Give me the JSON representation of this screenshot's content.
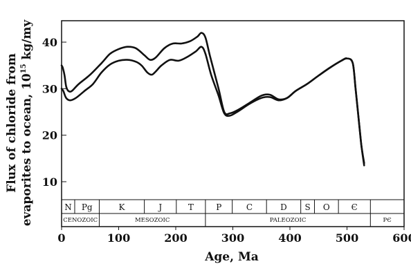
{
  "chart_data": {
    "type": "line",
    "title": "",
    "xlabel": "Age, Ma",
    "ylabel_line1": "Flux of chloride from",
    "ylabel_line2": "evaporites to ocean, 10",
    "ylabel_exponent": "15",
    "ylabel_unit": " kg/my",
    "xlim": [
      0,
      600
    ],
    "ylim": [
      5,
      45
    ],
    "xticks": [
      0,
      100,
      200,
      300,
      400,
      500,
      600
    ],
    "yticks": [
      10,
      20,
      30,
      40
    ],
    "grid": false,
    "series": [
      {
        "x": [
          0,
          2,
          5,
          8,
          12,
          18,
          30,
          50,
          70,
          85,
          100,
          115,
          130,
          145,
          155,
          165,
          180,
          195,
          210,
          225,
          238,
          245,
          252,
          260,
          275,
          285,
          295,
          310,
          330,
          350,
          365,
          380,
          395,
          410,
          430,
          450,
          470,
          490,
          500,
          510,
          515,
          520,
          525,
          530
        ],
        "values": [
          35,
          34.5,
          33,
          30.5,
          29.5,
          29.5,
          31,
          33,
          35.5,
          37.5,
          38.5,
          39,
          38.7,
          37.2,
          36.2,
          36.7,
          38.7,
          39.7,
          39.7,
          40.2,
          41.2,
          42,
          41,
          37,
          30,
          25,
          24.7,
          25.5,
          27,
          28.5,
          28.7,
          27.7,
          28,
          29.5,
          31,
          32.8,
          34.5,
          36,
          36.5,
          35.5,
          30,
          24,
          18,
          14
        ]
      },
      {
        "x": [
          0,
          3,
          8,
          15,
          25,
          40,
          55,
          70,
          85,
          100,
          115,
          130,
          140,
          150,
          158,
          165,
          175,
          190,
          205,
          220,
          235,
          245,
          252,
          262,
          275,
          285,
          295,
          310,
          330,
          350,
          365,
          380,
          395,
          410,
          430,
          450,
          470,
          490,
          500,
          510,
          515,
          520,
          525,
          530
        ],
        "values": [
          30,
          29.5,
          28,
          27.5,
          28,
          29.5,
          31,
          33.5,
          35.2,
          36,
          36.2,
          35.8,
          35,
          33.5,
          33,
          33.7,
          35,
          36.2,
          36,
          36.8,
          38,
          39,
          37.5,
          33,
          28.5,
          24.7,
          24.2,
          25.2,
          26.8,
          28,
          28.2,
          27.5,
          28,
          29.5,
          31,
          32.8,
          34.5,
          36,
          36.5,
          35.5,
          30,
          24,
          18,
          13.5
        ]
      }
    ],
    "periods": [
      {
        "label": "N",
        "from": 0,
        "to": 23
      },
      {
        "label": "Pg",
        "from": 23,
        "to": 66
      },
      {
        "label": "K",
        "from": 66,
        "to": 145
      },
      {
        "label": "J",
        "from": 145,
        "to": 201
      },
      {
        "label": "T",
        "from": 201,
        "to": 252
      },
      {
        "label": "P",
        "from": 252,
        "to": 299
      },
      {
        "label": "C",
        "from": 299,
        "to": 359
      },
      {
        "label": "D",
        "from": 359,
        "to": 419
      },
      {
        "label": "S",
        "from": 419,
        "to": 443
      },
      {
        "label": "O",
        "from": 443,
        "to": 485
      },
      {
        "label": "Є",
        "from": 485,
        "to": 541
      },
      {
        "label": "",
        "from": 541,
        "to": 600
      }
    ],
    "eras": [
      {
        "label": "CENOZOIC",
        "from": 0,
        "to": 66
      },
      {
        "label": "MESOZOIC",
        "from": 66,
        "to": 252
      },
      {
        "label": "PALEOZOIC",
        "from": 252,
        "to": 541
      },
      {
        "label": "PЄ",
        "from": 541,
        "to": 600
      }
    ]
  }
}
